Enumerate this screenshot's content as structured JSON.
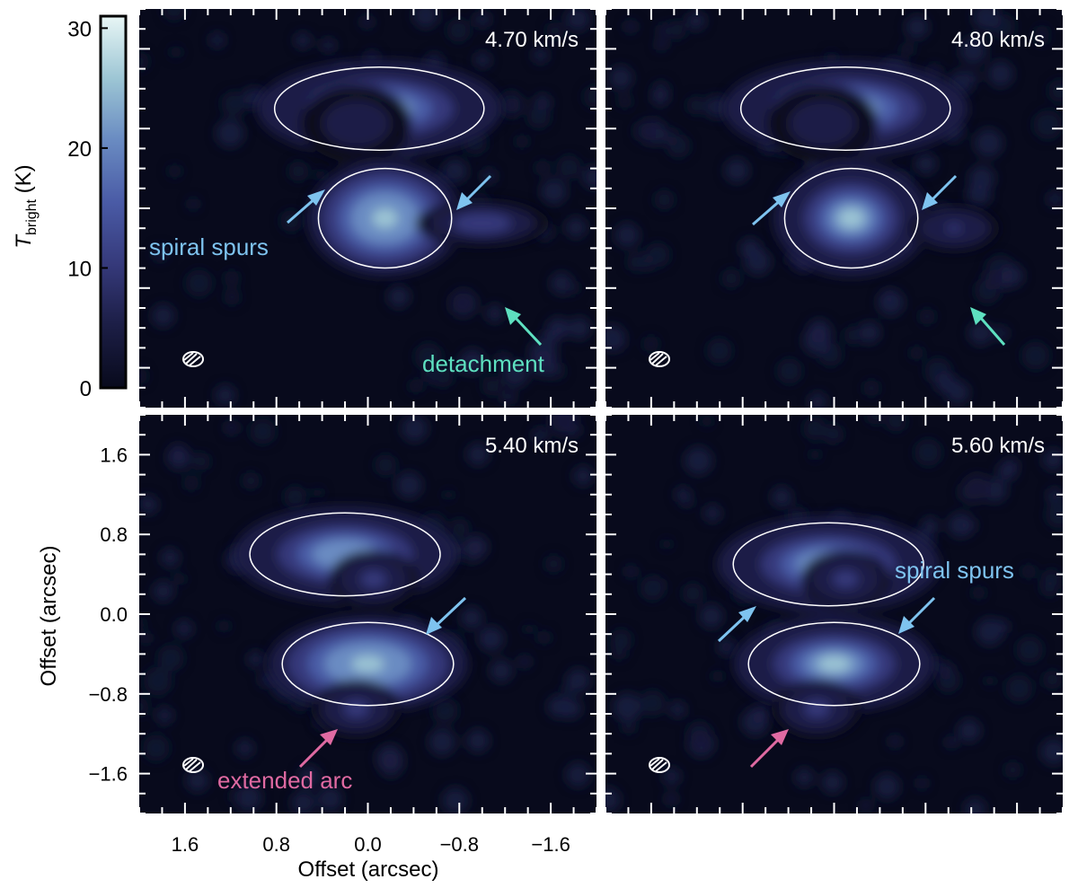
{
  "chart_data": {
    "type": "heatmap",
    "description_units": "channel maps of brightness temperature",
    "colorbar": {
      "label_main": "T",
      "label_sub": "bright",
      "label_unit": " (K)",
      "ticks": [
        0,
        10,
        20,
        30
      ],
      "range": [
        0,
        31
      ],
      "colors": [
        "#080a1c",
        "#1c1e46",
        "#35397a",
        "#4a5ba6",
        "#6a8cc2",
        "#9cc5d4",
        "#e8f6f5"
      ]
    },
    "x_axis": {
      "label": "Offset (arcsec)",
      "ticks": [
        1.6,
        0.8,
        0.0,
        -0.8,
        -1.6
      ],
      "tick_labels": [
        "1.6",
        "0.8",
        "0.0",
        "−0.8",
        "−1.6"
      ],
      "range": [
        2.0,
        -2.0
      ]
    },
    "y_axis": {
      "label": "Offset (arcsec)",
      "ticks": [
        1.6,
        0.8,
        0.0,
        -0.8,
        -1.6
      ],
      "tick_labels": [
        "1.6",
        "0.8",
        "0.0",
        "−0.8",
        "−1.6"
      ],
      "range": [
        -2.0,
        2.0
      ]
    },
    "panels": [
      {
        "velocity": "4.70 km/s",
        "blobs": [
          {
            "x": -0.1,
            "y": 1.0,
            "sx": 0.55,
            "sy": 0.25,
            "amp": 22
          },
          {
            "x": 0.1,
            "y": 0.85,
            "sx": 0.25,
            "sy": 0.2,
            "amp": 8
          },
          {
            "x": -0.15,
            "y": -0.1,
            "sx": 0.35,
            "sy": 0.3,
            "amp": 26
          },
          {
            "x": -1.0,
            "y": -0.15,
            "sx": 0.3,
            "sy": 0.12,
            "amp": 12
          }
        ],
        "annotations": [
          {
            "text": "spiral spurs",
            "color": "#7ec3ef"
          },
          {
            "text": "detachment",
            "color": "#5ee0c0"
          }
        ]
      },
      {
        "velocity": "4.80 km/s",
        "blobs": [
          {
            "x": -0.1,
            "y": 1.0,
            "sx": 0.55,
            "sy": 0.25,
            "amp": 22
          },
          {
            "x": 0.1,
            "y": 0.85,
            "sx": 0.25,
            "sy": 0.2,
            "amp": 6
          },
          {
            "x": -0.15,
            "y": -0.1,
            "sx": 0.35,
            "sy": 0.3,
            "amp": 25
          },
          {
            "x": -1.05,
            "y": -0.2,
            "sx": 0.2,
            "sy": 0.12,
            "amp": 9
          }
        ],
        "annotations": []
      },
      {
        "velocity": "5.40 km/s",
        "blobs": [
          {
            "x": 0.2,
            "y": 0.6,
            "sx": 0.5,
            "sy": 0.25,
            "amp": 22
          },
          {
            "x": -0.05,
            "y": 0.35,
            "sx": 0.2,
            "sy": 0.15,
            "amp": 10
          },
          {
            "x": 0.0,
            "y": -0.5,
            "sx": 0.45,
            "sy": 0.25,
            "amp": 26
          },
          {
            "x": 0.1,
            "y": -0.95,
            "sx": 0.2,
            "sy": 0.15,
            "amp": 10
          }
        ],
        "annotations": [
          {
            "text": "extended arc",
            "color": "#e06aa2"
          }
        ]
      },
      {
        "velocity": "5.60 km/s",
        "blobs": [
          {
            "x": 0.05,
            "y": 0.5,
            "sx": 0.5,
            "sy": 0.25,
            "amp": 22
          },
          {
            "x": -0.1,
            "y": 0.35,
            "sx": 0.2,
            "sy": 0.15,
            "amp": 10
          },
          {
            "x": 0.0,
            "y": -0.5,
            "sx": 0.45,
            "sy": 0.25,
            "amp": 25
          },
          {
            "x": 0.15,
            "y": -0.95,
            "sx": 0.2,
            "sy": 0.15,
            "amp": 10
          }
        ],
        "annotations": [
          {
            "text": "spiral spurs",
            "color": "#7ec3ef"
          }
        ]
      }
    ]
  }
}
